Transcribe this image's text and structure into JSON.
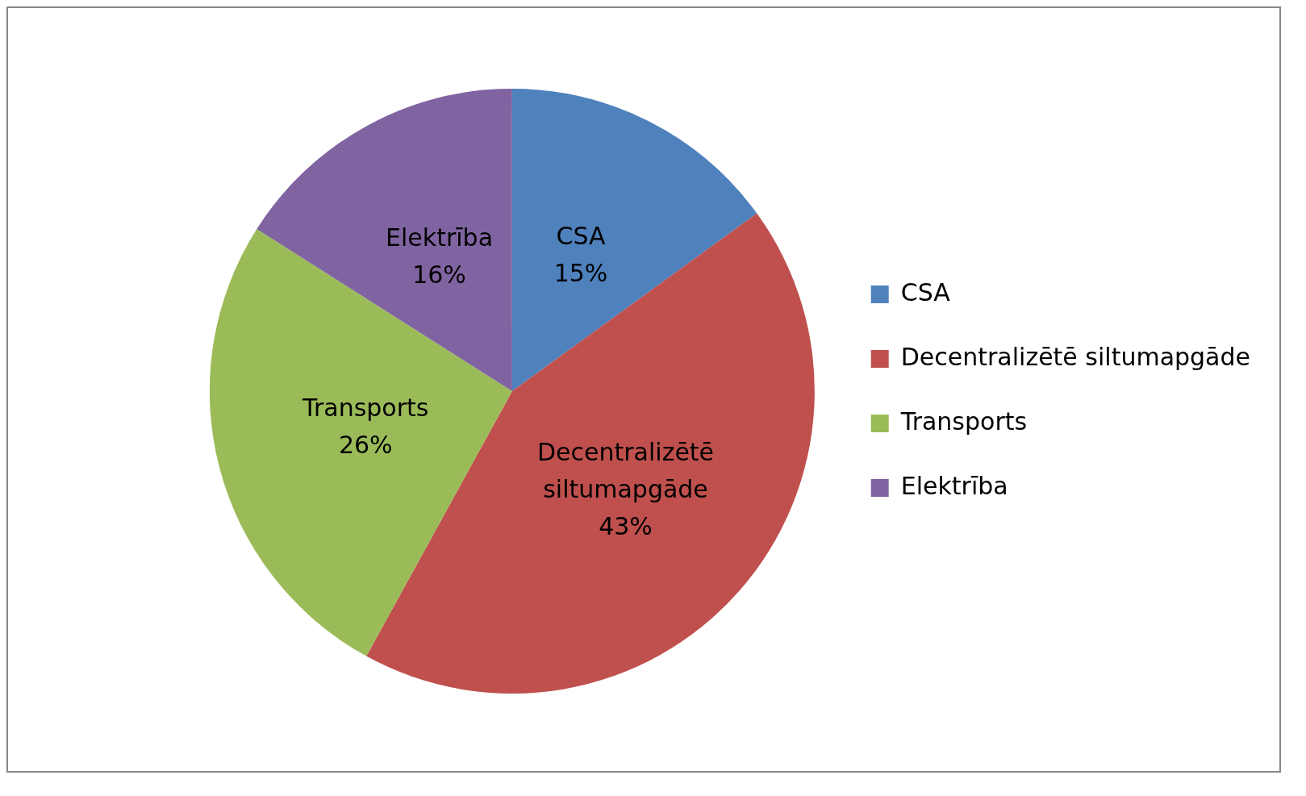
{
  "chart_data": {
    "type": "pie",
    "categories": [
      "CSA",
      "Decentralizētē siltumapgāde",
      "Transports",
      "Elektrība"
    ],
    "values": [
      15,
      43,
      26,
      16
    ],
    "colors": [
      "#4f81bd",
      "#c0504d",
      "#9bbb59",
      "#8064a2"
    ],
    "value_labels": [
      "15%",
      "43%",
      "26%",
      "16%"
    ],
    "legend": "right"
  }
}
